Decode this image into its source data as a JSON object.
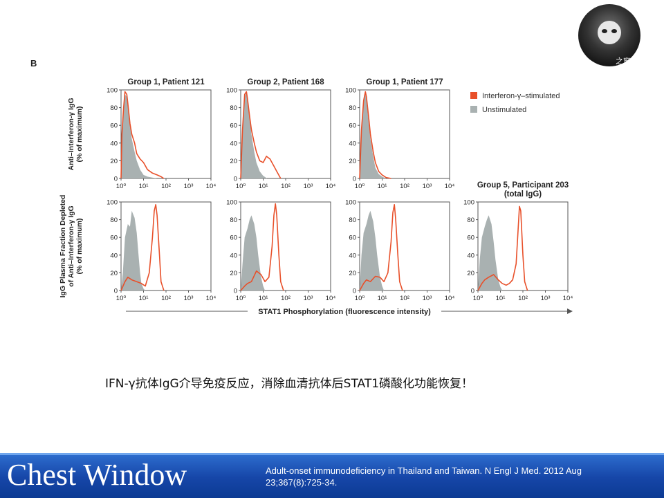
{
  "figure": {
    "panel_letter": "B"
  },
  "chart_data": {
    "type": "area",
    "x_scale": "log",
    "xlim": [
      1,
      10000
    ],
    "ylim": [
      0,
      100
    ],
    "x_tick_labels": [
      "10⁰",
      "10¹",
      "10²",
      "10³",
      "10⁴"
    ],
    "y_tick_labels": [
      "0",
      "20",
      "40",
      "60",
      "80",
      "100"
    ],
    "x_axis_label": "STAT1 Phosphorylation (fluorescence intensity)",
    "row_labels": [
      "Anti–Interferon-γ IgG\n(% of maximum)",
      "IgG Plasma Fraction Depleted\nof Anti–Interferon-γ IgG\n(% of maximum)"
    ],
    "legend": {
      "placement": "top-right",
      "entries": [
        {
          "name": "Interferon-γ–stimulated",
          "color": "#e8502a"
        },
        {
          "name": "Unstimulated",
          "color": "#a9b1b1"
        }
      ]
    },
    "panels": [
      {
        "title": "Group 1, Patient 121",
        "row": 0,
        "col": 0,
        "series": [
          {
            "name": "Unstimulated",
            "x": [
              1,
              1.1,
              1.3,
              1.5,
              1.8,
              2,
              2.5,
              3,
              4,
              5,
              7,
              10,
              15,
              25,
              40
            ],
            "y": [
              0,
              55,
              85,
              95,
              92,
              82,
              60,
              45,
              30,
              20,
              10,
              4,
              2,
              1,
              0
            ]
          },
          {
            "name": "Interferon-γ–stimulated",
            "x": [
              1,
              1.1,
              1.3,
              1.5,
              1.8,
              2,
              2.5,
              3,
              4,
              5,
              7,
              10,
              15,
              25,
              40,
              60,
              80
            ],
            "y": [
              0,
              50,
              80,
              98,
              95,
              85,
              62,
              50,
              40,
              28,
              22,
              18,
              10,
              6,
              4,
              2,
              0
            ]
          }
        ]
      },
      {
        "title": "Group 2, Patient 168",
        "row": 0,
        "col": 1,
        "series": [
          {
            "name": "Unstimulated",
            "x": [
              1,
              1.2,
              1.5,
              1.8,
              2,
              2.5,
              3,
              4,
              5,
              7,
              10,
              15
            ],
            "y": [
              0,
              60,
              92,
              98,
              90,
              70,
              50,
              30,
              18,
              8,
              3,
              0
            ]
          },
          {
            "name": "Interferon-γ–stimulated",
            "x": [
              1,
              1.2,
              1.5,
              1.8,
              2,
              2.5,
              3,
              4,
              5,
              7,
              10,
              14,
              20,
              30,
              40,
              60
            ],
            "y": [
              0,
              55,
              95,
              98,
              90,
              70,
              55,
              40,
              30,
              20,
              18,
              25,
              22,
              14,
              8,
              0
            ]
          }
        ]
      },
      {
        "title": "Group 1, Patient 177",
        "row": 0,
        "col": 2,
        "series": [
          {
            "name": "Unstimulated",
            "x": [
              1,
              1.2,
              1.5,
              1.8,
              2,
              2.5,
              3,
              4,
              5,
              7,
              10,
              15
            ],
            "y": [
              0,
              60,
              90,
              97,
              88,
              65,
              45,
              25,
              12,
              5,
              2,
              0
            ]
          },
          {
            "name": "Interferon-γ–stimulated",
            "x": [
              1,
              1.2,
              1.5,
              1.8,
              2,
              2.5,
              3,
              4,
              5,
              7,
              10,
              15,
              25
            ],
            "y": [
              0,
              55,
              88,
              98,
              92,
              70,
              50,
              30,
              18,
              8,
              4,
              1,
              0
            ]
          }
        ]
      },
      {
        "title": "",
        "row": 1,
        "col": 0,
        "series": [
          {
            "name": "Unstimulated",
            "x": [
              1,
              1.2,
              1.5,
              2,
              2.5,
              3,
              4,
              5,
              6,
              7,
              8,
              10,
              12
            ],
            "y": [
              0,
              20,
              60,
              75,
              72,
              90,
              82,
              65,
              40,
              20,
              8,
              2,
              0
            ]
          },
          {
            "name": "Interferon-γ–stimulated",
            "x": [
              1,
              1.5,
              2,
              3,
              5,
              8,
              12,
              18,
              25,
              30,
              35,
              40,
              50,
              60,
              80
            ],
            "y": [
              0,
              10,
              15,
              12,
              10,
              8,
              5,
              20,
              60,
              90,
              97,
              85,
              45,
              10,
              0
            ]
          }
        ]
      },
      {
        "title": "",
        "row": 1,
        "col": 1,
        "series": [
          {
            "name": "Unstimulated",
            "x": [
              1,
              1.2,
              1.5,
              2,
              2.5,
              3,
              4,
              5,
              6,
              8,
              10,
              12
            ],
            "y": [
              0,
              30,
              60,
              70,
              80,
              85,
              75,
              60,
              40,
              15,
              5,
              0
            ]
          },
          {
            "name": "Interferon-γ–stimulated",
            "x": [
              1,
              1.5,
              2,
              3,
              5,
              8,
              12,
              18,
              25,
              30,
              35,
              40,
              50,
              60,
              80
            ],
            "y": [
              0,
              5,
              8,
              10,
              22,
              18,
              10,
              15,
              50,
              85,
              98,
              85,
              40,
              10,
              0
            ]
          }
        ]
      },
      {
        "title": "",
        "row": 1,
        "col": 2,
        "series": [
          {
            "name": "Unstimulated",
            "x": [
              1,
              1.2,
              1.5,
              2,
              2.5,
              3,
              4,
              5,
              6,
              8,
              10,
              12
            ],
            "y": [
              0,
              40,
              65,
              75,
              85,
              90,
              78,
              60,
              40,
              15,
              5,
              0
            ]
          },
          {
            "name": "Interferon-γ–stimulated",
            "x": [
              1,
              1.5,
              2,
              3,
              5,
              8,
              12,
              18,
              25,
              30,
              35,
              40,
              50,
              60,
              80
            ],
            "y": [
              0,
              8,
              12,
              10,
              16,
              15,
              10,
              20,
              55,
              88,
              97,
              80,
              40,
              10,
              0
            ]
          }
        ]
      },
      {
        "title": "Group 5, Participant 203\n(total IgG)",
        "row": 1,
        "col": 3,
        "series": [
          {
            "name": "Unstimulated",
            "x": [
              1,
              1.2,
              1.5,
              2,
              2.5,
              3,
              4,
              5,
              6,
              8,
              10,
              12
            ],
            "y": [
              0,
              35,
              60,
              72,
              80,
              85,
              75,
              55,
              35,
              12,
              4,
              0
            ]
          },
          {
            "name": "Interferon-γ–stimulated",
            "x": [
              1,
              1.5,
              2,
              3,
              5,
              8,
              12,
              18,
              25,
              35,
              50,
              60,
              70,
              80,
              100,
              120,
              160
            ],
            "y": [
              0,
              8,
              12,
              15,
              18,
              12,
              8,
              6,
              8,
              12,
              30,
              65,
              95,
              90,
              40,
              10,
              0
            ]
          }
        ]
      }
    ]
  },
  "logo": {
    "text": "之窗"
  },
  "caption": "IFN-γ抗体IgG介导免疫反应，消除血清抗体后STAT1磷酸化功能恢复！",
  "footer": {
    "brand": "Chest Window",
    "citation": "Adult-onset immunodeficiency in Thailand and Taiwan. N Engl J Med. 2012 Aug 23;367(8):725-34."
  }
}
